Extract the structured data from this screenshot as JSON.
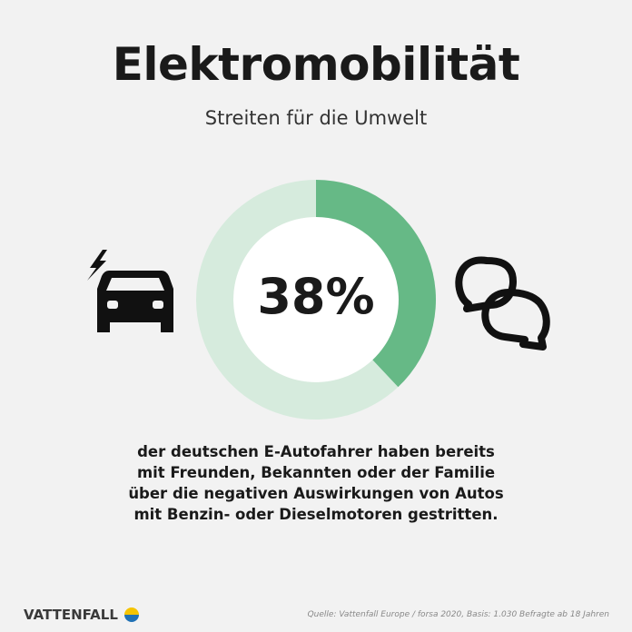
{
  "title": "Elektromobilität",
  "subtitle": "Streiten für die Umwelt",
  "chart_data": {
    "type": "pie",
    "variant": "donut",
    "values": [
      38,
      62
    ],
    "data_label": "38%",
    "colors": [
      "#66b986",
      "#d6ebdd"
    ]
  },
  "description_lines": [
    "der deutschen E-Autofahrer haben bereits",
    "mit Freunden, Bekannten oder der Familie",
    "über die negativen Auswirkungen von Autos",
    "mit Benzin- oder Dieselmotoren gestritten."
  ],
  "icons": [
    "electric-car-icon",
    "speech-bubbles-icon"
  ],
  "footer": {
    "logo": "VATTENFALL",
    "source": "Quelle: Vattenfall Europe / forsa 2020, Basis: 1.030 Befragte ab 18 Jahren"
  }
}
